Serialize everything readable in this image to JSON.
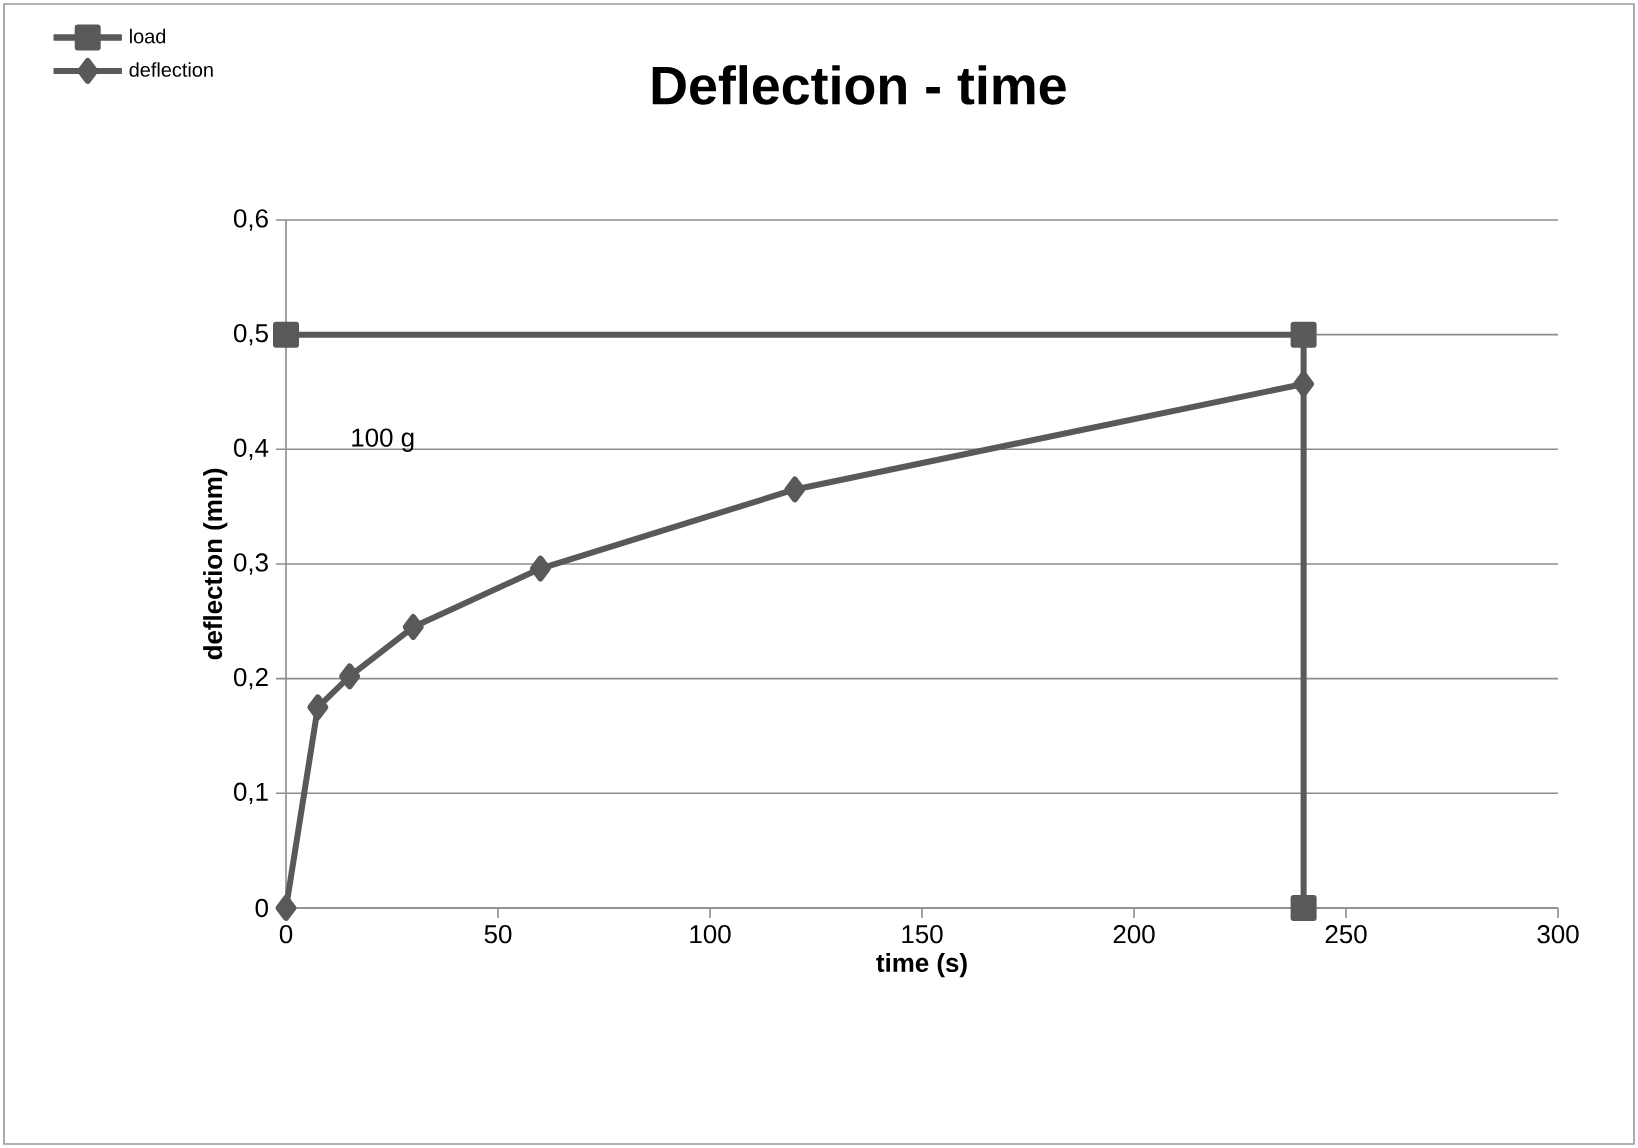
{
  "chart_data": {
    "type": "line",
    "title": "Deflection - time",
    "xlabel": "time (s)",
    "ylabel": "deflection (mm)",
    "series": [
      {
        "name": "load",
        "color": "#595959",
        "marker": "square",
        "x": [
          0,
          240,
          240
        ],
        "values": [
          0.5,
          0.5,
          0
        ]
      },
      {
        "name": "deflection",
        "color": "#595959",
        "marker": "diamond",
        "x": [
          0,
          7.5,
          15,
          30,
          60,
          120,
          240
        ],
        "values": [
          0,
          0.175,
          0.202,
          0.245,
          0.296,
          0.365,
          0.457
        ]
      }
    ],
    "annotations": [
      "100 g"
    ],
    "xlim": [
      0,
      300
    ],
    "ylim": [
      0,
      0.6
    ],
    "xticks": [
      0,
      50,
      100,
      150,
      200,
      250,
      300
    ],
    "yticks": [
      0,
      {
        "value": 0.1,
        "label": "0,1"
      },
      {
        "value": 0.2,
        "label": "0,2"
      },
      {
        "value": 0.3,
        "label": "0,3"
      },
      {
        "value": 0.4,
        "label": "0,4"
      },
      {
        "value": 0.5,
        "label": "0,5"
      },
      {
        "value": 0.6,
        "label": "0,6"
      }
    ],
    "grid": "y",
    "legend": "top left",
    "line_style": "solid"
  }
}
